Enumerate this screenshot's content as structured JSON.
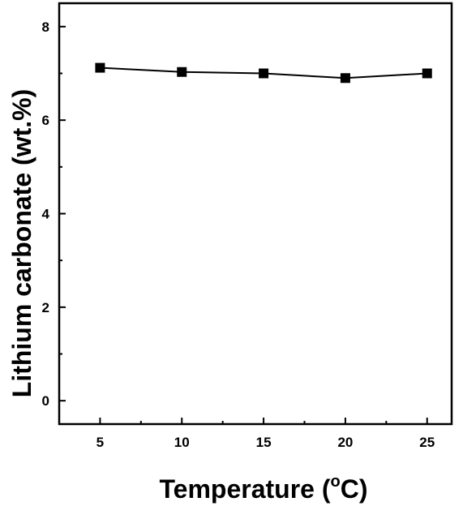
{
  "chart_data": {
    "type": "line",
    "title": "",
    "xlabel": "Temperature (°C)",
    "xlabel_main": "Temperature (",
    "xlabel_degree": "o",
    "xlabel_unit": "C)",
    "ylabel": "Lithium carbonate (wt.%)",
    "x": [
      5,
      10,
      15,
      20,
      25
    ],
    "series": [
      {
        "values": [
          7.12,
          7.03,
          7.0,
          6.9,
          7.0
        ],
        "marker": "square",
        "color": "#000000"
      }
    ],
    "xlim": [
      2.5,
      26.5
    ],
    "ylim": [
      -0.5,
      8.5
    ],
    "xticks": [
      "5",
      "10",
      "15",
      "20",
      "25"
    ],
    "yticks": [
      "0",
      "2",
      "4",
      "6",
      "8"
    ],
    "ytick_values": [
      0,
      2,
      4,
      6,
      8
    ],
    "xminor": [
      7.5,
      12.5,
      17.5,
      22.5
    ],
    "yminor": [
      1,
      3,
      5,
      7
    ],
    "grid": false,
    "legend": "none"
  }
}
